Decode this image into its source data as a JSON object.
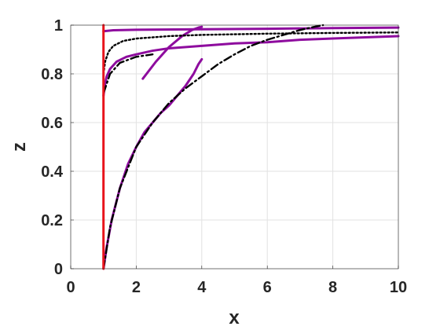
{
  "chart_data": {
    "type": "line",
    "title": "",
    "xlabel": "x",
    "ylabel": "z",
    "xlim": [
      0,
      10
    ],
    "ylim": [
      0,
      1
    ],
    "xticks": [
      "0",
      "2",
      "4",
      "6",
      "8",
      "10"
    ],
    "yticks": [
      "0",
      "0.2",
      "0.4",
      "0.6",
      "0.8",
      "1"
    ],
    "grid": true,
    "legend": "none",
    "colors": {
      "purple": "#8e0c9e",
      "black": "#000000",
      "red": "#e8141c"
    },
    "series": [
      {
        "style": "solid",
        "color": "#8e0c9e",
        "points": [
          [
            1.0,
            0.0
          ],
          [
            1.1,
            0.09
          ],
          [
            1.25,
            0.2
          ],
          [
            1.5,
            0.33
          ],
          [
            1.75,
            0.43
          ],
          [
            2.0,
            0.5
          ],
          [
            2.25,
            0.56
          ],
          [
            2.5,
            0.6
          ],
          [
            2.75,
            0.64
          ],
          [
            3.0,
            0.67
          ],
          [
            3.25,
            0.71
          ],
          [
            3.5,
            0.75
          ],
          [
            3.75,
            0.8
          ],
          [
            3.9,
            0.84
          ],
          [
            4.0,
            0.86
          ]
        ]
      },
      {
        "style": "solid",
        "color": "#8e0c9e",
        "points": [
          [
            1.0,
            0.71
          ],
          [
            1.05,
            0.76
          ],
          [
            1.1,
            0.79
          ],
          [
            1.2,
            0.82
          ],
          [
            1.4,
            0.85
          ],
          [
            1.7,
            0.87
          ],
          [
            2.0,
            0.88
          ],
          [
            2.5,
            0.895
          ],
          [
            3.0,
            0.905
          ],
          [
            4.0,
            0.915
          ],
          [
            5.0,
            0.925
          ],
          [
            6.0,
            0.93
          ],
          [
            7.0,
            0.94
          ],
          [
            8.0,
            0.945
          ],
          [
            9.0,
            0.95
          ],
          [
            10.0,
            0.955
          ]
        ]
      },
      {
        "style": "solid",
        "color": "#8e0c9e",
        "points": [
          [
            1.0,
            0.975
          ],
          [
            1.3,
            0.979
          ],
          [
            2.0,
            0.981
          ],
          [
            4.0,
            0.983
          ],
          [
            6.0,
            0.985
          ],
          [
            8.0,
            0.988
          ],
          [
            10.0,
            0.99
          ]
        ]
      },
      {
        "style": "solid",
        "color": "#8e0c9e",
        "points": [
          [
            2.2,
            0.78
          ],
          [
            2.6,
            0.85
          ],
          [
            3.0,
            0.91
          ],
          [
            3.4,
            0.955
          ],
          [
            3.7,
            0.98
          ],
          [
            3.9,
            0.99
          ],
          [
            4.0,
            0.993
          ]
        ]
      },
      {
        "style": "dashdot",
        "color": "#000000",
        "points": [
          [
            1.0,
            0.0
          ],
          [
            1.2,
            0.17
          ],
          [
            1.5,
            0.33
          ],
          [
            2.0,
            0.5
          ],
          [
            2.5,
            0.6
          ],
          [
            3.0,
            0.68
          ],
          [
            3.5,
            0.74
          ],
          [
            4.0,
            0.79
          ],
          [
            4.5,
            0.84
          ],
          [
            5.0,
            0.88
          ],
          [
            5.5,
            0.915
          ],
          [
            6.0,
            0.94
          ],
          [
            6.5,
            0.96
          ],
          [
            7.0,
            0.98
          ],
          [
            7.5,
            0.995
          ],
          [
            7.7,
            1.0
          ]
        ]
      },
      {
        "style": "dotted",
        "color": "#000000",
        "points": [
          [
            1.0,
            0.8
          ],
          [
            1.05,
            0.85
          ],
          [
            1.15,
            0.89
          ],
          [
            1.3,
            0.915
          ],
          [
            1.6,
            0.935
          ],
          [
            2.0,
            0.945
          ],
          [
            3.0,
            0.955
          ],
          [
            4.0,
            0.96
          ],
          [
            6.0,
            0.965
          ],
          [
            8.0,
            0.968
          ],
          [
            10.0,
            0.97
          ]
        ]
      },
      {
        "style": "dashdot",
        "color": "#000000",
        "points": [
          [
            1.0,
            0.72
          ],
          [
            1.2,
            0.8
          ],
          [
            1.5,
            0.845
          ],
          [
            2.0,
            0.87
          ],
          [
            2.5,
            0.88
          ]
        ]
      },
      {
        "style": "solid",
        "color": "#e8141c",
        "points": [
          [
            1.0,
            0.0
          ],
          [
            1.0,
            1.0
          ]
        ]
      }
    ]
  }
}
